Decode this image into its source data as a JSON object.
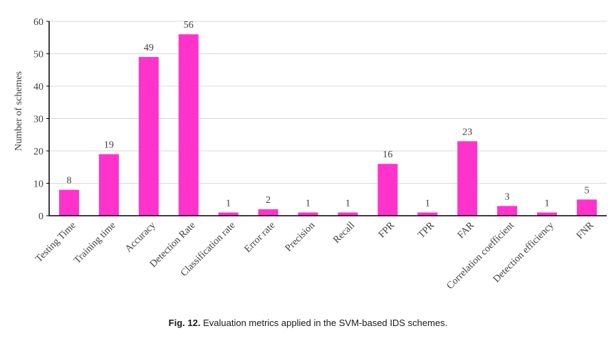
{
  "chart_data": {
    "type": "bar",
    "categories": [
      "Testing Time",
      "Training time",
      "Accuracy",
      "Detection Rate",
      "Classification rate",
      "Error rate",
      "Precision",
      "Recall",
      "FPR",
      "TPR",
      "FAR",
      "Correlation coefficient",
      "Detection efficiency",
      "FNR"
    ],
    "values": [
      8,
      19,
      49,
      56,
      1,
      2,
      1,
      1,
      16,
      1,
      23,
      3,
      1,
      5
    ],
    "value_labels": [
      "8",
      "19",
      "49",
      "56",
      "1",
      "2",
      "1",
      "1",
      "16",
      "1",
      "23",
      "3",
      "1",
      "5"
    ],
    "title": "",
    "xlabel": "",
    "ylabel": "Number of schemes",
    "ylim": [
      0,
      60
    ],
    "yticks": [
      0,
      10,
      20,
      30,
      40,
      50,
      60
    ],
    "ytick_labels": [
      "0",
      "10",
      "20",
      "30",
      "40",
      "50",
      "60"
    ],
    "grid": true,
    "bar_color": "#ff33cc"
  },
  "caption": {
    "label": "Fig. 12.",
    "text": "Evaluation metrics applied in the SVM-based IDS schemes."
  }
}
